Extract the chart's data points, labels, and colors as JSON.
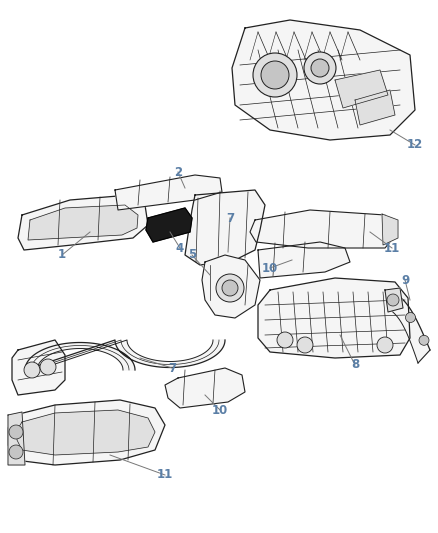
{
  "background_color": "#ffffff",
  "label_color": "#5b7fa6",
  "line_color": "#333333",
  "thin_line": "#555555",
  "leader_color": "#777777",
  "figsize": [
    4.38,
    5.33
  ],
  "dpi": 100,
  "parts_fill": "#f0f0f0",
  "parts_dark": "#c8c8c8",
  "parts_edge": "#222222"
}
